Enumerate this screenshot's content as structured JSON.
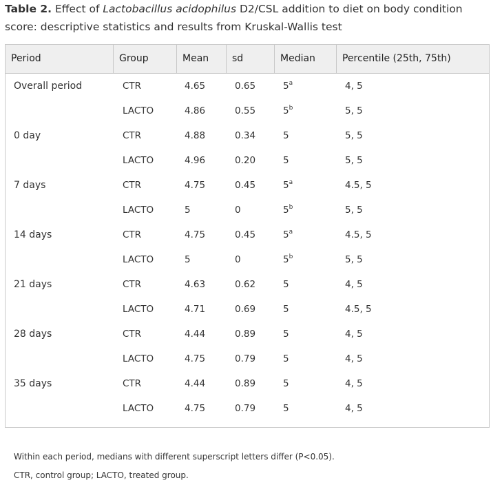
{
  "caption": {
    "label": "Table 2.",
    "before_species": " Effect of ",
    "species": "Lactobacillus acidophilus",
    "after_species": " D2/CSL addition to diet on body condition score: descriptive statistics and results from Kruskal-Wallis test"
  },
  "table": {
    "headers": [
      "Period",
      "Group",
      "Mean",
      "sd",
      "Median",
      "Percentile (25th, 75th)"
    ],
    "rows": [
      {
        "period": "Overall period",
        "group": "CTR",
        "mean": "4.65",
        "sd": "0.65",
        "median": "5",
        "median_sup": "a",
        "percentile": "4, 5"
      },
      {
        "period": "",
        "group": "LACTO",
        "mean": "4.86",
        "sd": "0.55",
        "median": "5",
        "median_sup": "b",
        "percentile": "5, 5"
      },
      {
        "period": "0 day",
        "group": "CTR",
        "mean": "4.88",
        "sd": "0.34",
        "median": "5",
        "median_sup": "",
        "percentile": "5, 5"
      },
      {
        "period": "",
        "group": "LACTO",
        "mean": "4.96",
        "sd": "0.20",
        "median": "5",
        "median_sup": "",
        "percentile": "5, 5"
      },
      {
        "period": "7 days",
        "group": "CTR",
        "mean": "4.75",
        "sd": "0.45",
        "median": "5",
        "median_sup": "a",
        "percentile": "4.5, 5"
      },
      {
        "period": "",
        "group": "LACTO",
        "mean": "5",
        "sd": "0",
        "median": "5",
        "median_sup": "b",
        "percentile": "5, 5"
      },
      {
        "period": "14 days",
        "group": "CTR",
        "mean": "4.75",
        "sd": "0.45",
        "median": "5",
        "median_sup": "a",
        "percentile": "4.5, 5"
      },
      {
        "period": "",
        "group": "LACTO",
        "mean": "5",
        "sd": "0",
        "median": "5",
        "median_sup": "b",
        "percentile": "5, 5"
      },
      {
        "period": "21 days",
        "group": "CTR",
        "mean": "4.63",
        "sd": "0.62",
        "median": "5",
        "median_sup": "",
        "percentile": "4, 5"
      },
      {
        "period": "",
        "group": "LACTO",
        "mean": "4.71",
        "sd": "0.69",
        "median": "5",
        "median_sup": "",
        "percentile": "4.5, 5"
      },
      {
        "period": "28 days",
        "group": "CTR",
        "mean": "4.44",
        "sd": "0.89",
        "median": "5",
        "median_sup": "",
        "percentile": "4, 5"
      },
      {
        "period": "",
        "group": "LACTO",
        "mean": "4.75",
        "sd": "0.79",
        "median": "5",
        "median_sup": "",
        "percentile": "4, 5"
      },
      {
        "period": "35 days",
        "group": "CTR",
        "mean": "4.44",
        "sd": "0.89",
        "median": "5",
        "median_sup": "",
        "percentile": "4, 5"
      },
      {
        "period": "",
        "group": "LACTO",
        "mean": "4.75",
        "sd": "0.79",
        "median": "5",
        "median_sup": "",
        "percentile": "4, 5"
      }
    ]
  },
  "footnotes": [
    "Within each period, medians with different superscript letters differ (P<0.05).",
    "CTR, control group; LACTO, treated group."
  ]
}
